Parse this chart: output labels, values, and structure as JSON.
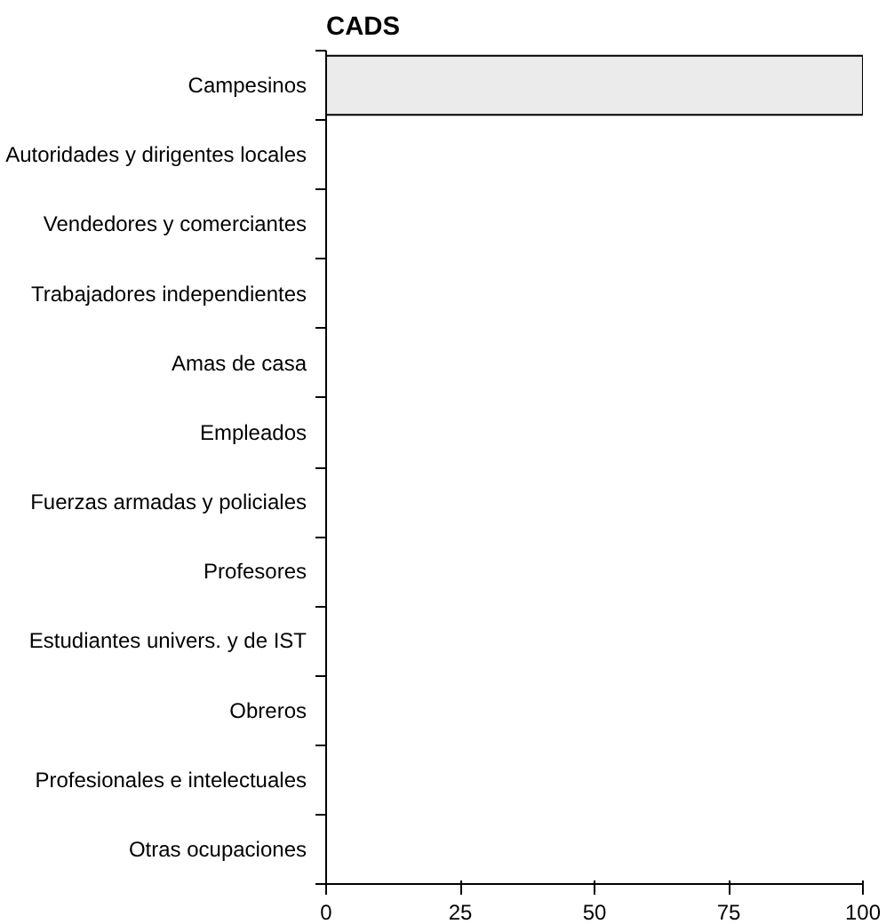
{
  "chart_data": {
    "type": "bar",
    "orientation": "horizontal",
    "title": "CADS",
    "categories": [
      "Campesinos",
      "Autoridades y dirigentes locales",
      "Vendedores y comerciantes",
      "Trabajadores independientes",
      "Amas de casa",
      "Empleados",
      "Fuerzas armadas y policiales",
      "Profesores",
      "Estudiantes univers. y de IST",
      "Obreros",
      "Profesionales e intelectuales",
      "Otras ocupaciones"
    ],
    "values": [
      100,
      0,
      0,
      0,
      0,
      0,
      0,
      0,
      0,
      0,
      0,
      0
    ],
    "color": "#ebebeb",
    "xlim": [
      0,
      100
    ],
    "xticks": [
      0,
      25,
      50,
      75,
      100
    ],
    "grid": false
  }
}
